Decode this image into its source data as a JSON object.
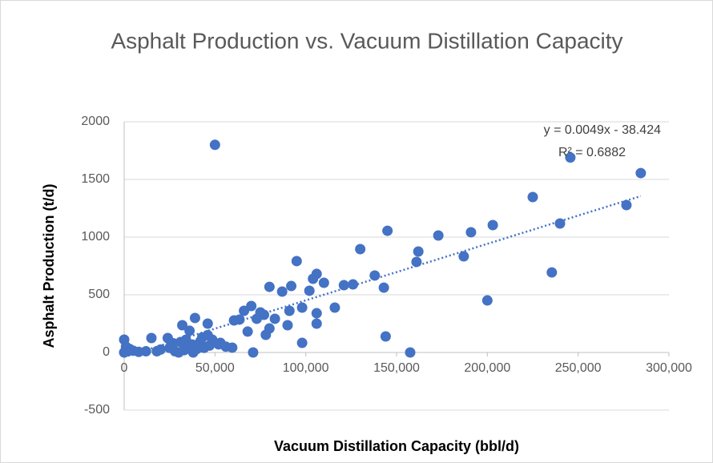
{
  "chart_data": {
    "type": "scatter",
    "title": "Asphalt Production vs. Vacuum Distillation Capacity",
    "x_label": "Vacuum Distillation Capacity (bbl/d)",
    "y_label": "Asphalt Production (t/d)",
    "color": "#4472c4",
    "xlim": [
      0,
      300000
    ],
    "ylim": [
      -500,
      2000
    ],
    "xticks": [
      0,
      {
        "value": 50000,
        "label": "50,000"
      },
      {
        "value": 100000,
        "label": "100,000"
      },
      {
        "value": 150000,
        "label": "150,000"
      },
      {
        "value": 200000,
        "label": "200,000"
      },
      {
        "value": 250000,
        "label": "250,000"
      },
      {
        "value": 300000,
        "label": "300,000"
      }
    ],
    "yticks": [
      -500,
      0,
      500,
      1000,
      1500,
      2000
    ],
    "grid": true,
    "x": [
      50000,
      284500,
      245700,
      225000,
      276600,
      240000,
      203000,
      191000,
      173000,
      145000,
      162000,
      130000,
      161000,
      187000,
      95000,
      106000,
      104000,
      110000,
      138000,
      121000,
      126000,
      143000,
      92000,
      80000,
      87000,
      102000,
      235500,
      200000,
      116000,
      98000,
      106000,
      106000,
      91000,
      90000,
      83000,
      80000,
      78000,
      70000,
      66000,
      75000,
      77000,
      73000,
      68000,
      63500,
      60500,
      39000,
      46000,
      32000,
      36000,
      144000,
      98000,
      71000,
      157500,
      15000,
      24000,
      0,
      59500,
      53000,
      48500,
      42000,
      37500,
      0,
      2000,
      5000,
      8000,
      12000,
      18000,
      20000,
      25000,
      28000,
      30000,
      33000,
      35000,
      38000,
      40000,
      44000,
      47000,
      52000,
      56000,
      3000,
      1000,
      27000,
      31000,
      34000,
      43000,
      46000
    ],
    "values": [
      1800,
      1555,
      1690,
      1347,
      1278,
      1118,
      1104,
      1042,
      1014,
      1055,
      875,
      896,
      785,
      833,
      792,
      681,
      639,
      604,
      667,
      583,
      590,
      562,
      576,
      569,
      528,
      535,
      694,
      451,
      389,
      389,
      340,
      250,
      361,
      236,
      292,
      208,
      153,
      403,
      361,
      347,
      326,
      292,
      181,
      285,
      278,
      299,
      250,
      236,
      188,
      139,
      83,
      0,
      0,
      125,
      125,
      111,
      42,
      83,
      111,
      97,
      69,
      0,
      10,
      15,
      5,
      10,
      10,
      25,
      40,
      10,
      0,
      20,
      50,
      0,
      30,
      40,
      60,
      70,
      50,
      30,
      50,
      80,
      90,
      110,
      130,
      150
    ],
    "trendline": {
      "slope": 0.0049,
      "intercept": -38.424,
      "label": "y = 0.0049x - 38.424",
      "r2_label": "R² = 0.6882"
    }
  }
}
